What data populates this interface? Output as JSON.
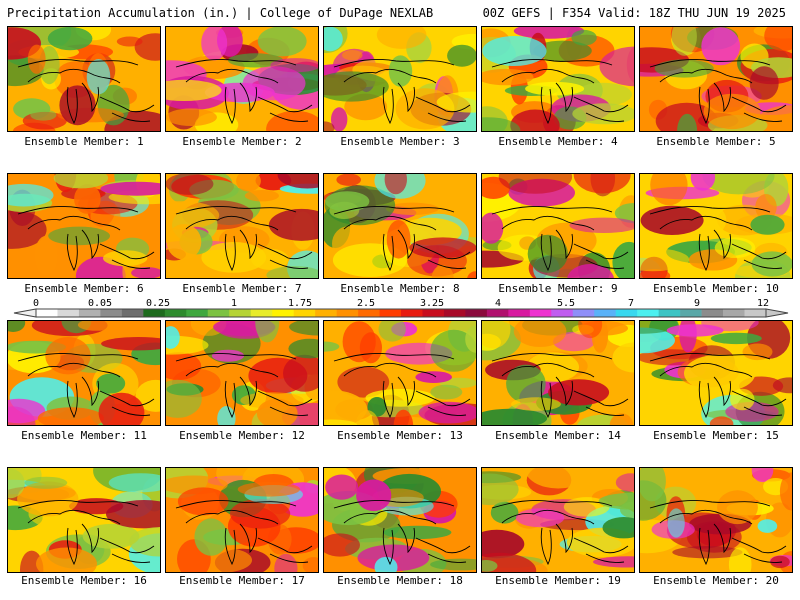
{
  "header": {
    "title": "Precipitation Accumulation (in.) | College of DuPage NEXLAB",
    "run_info": "00Z GEFS | F354 Valid: 18Z THU JUN 19 2025"
  },
  "colorbar": {
    "tick_labels": [
      "0",
      "0.05",
      "0.25",
      "1",
      "1.75",
      "2.5",
      "3.25",
      "4",
      "5.5",
      "7",
      "9",
      "12"
    ],
    "colors": [
      "#ffffff",
      "#d9d9d9",
      "#b0b0b0",
      "#8c8c8c",
      "#6e6e6e",
      "#1e6b1e",
      "#2e8b2e",
      "#3fa83f",
      "#7cc242",
      "#b5d334",
      "#e8ec2a",
      "#fff200",
      "#ffd400",
      "#ffb000",
      "#ff9000",
      "#ff6a00",
      "#ff3c00",
      "#e81c10",
      "#c80e1e",
      "#a80a28",
      "#8a0a3c",
      "#b0106e",
      "#d81aa0",
      "#ee32d0",
      "#c05cf0",
      "#8f8ff8",
      "#5ab2f8",
      "#38d8f0",
      "#4cf0f0",
      "#3cc4c4",
      "#5aa8a8",
      "#8c8c8c",
      "#a8a8a8",
      "#c8c8c8"
    ]
  },
  "members": [
    {
      "label": "Ensemble Member: 1"
    },
    {
      "label": "Ensemble Member: 2"
    },
    {
      "label": "Ensemble Member: 3"
    },
    {
      "label": "Ensemble Member: 4"
    },
    {
      "label": "Ensemble Member: 5"
    },
    {
      "label": "Ensemble Member: 6"
    },
    {
      "label": "Ensemble Member: 7"
    },
    {
      "label": "Ensemble Member: 8"
    },
    {
      "label": "Ensemble Member: 9"
    },
    {
      "label": "Ensemble Member: 10"
    },
    {
      "label": "Ensemble Member: 11"
    },
    {
      "label": "Ensemble Member: 12"
    },
    {
      "label": "Ensemble Member: 13"
    },
    {
      "label": "Ensemble Member: 14"
    },
    {
      "label": "Ensemble Member: 15"
    },
    {
      "label": "Ensemble Member: 16"
    },
    {
      "label": "Ensemble Member: 17"
    },
    {
      "label": "Ensemble Member: 18"
    },
    {
      "label": "Ensemble Member: 19"
    },
    {
      "label": "Ensemble Member: 20"
    }
  ]
}
